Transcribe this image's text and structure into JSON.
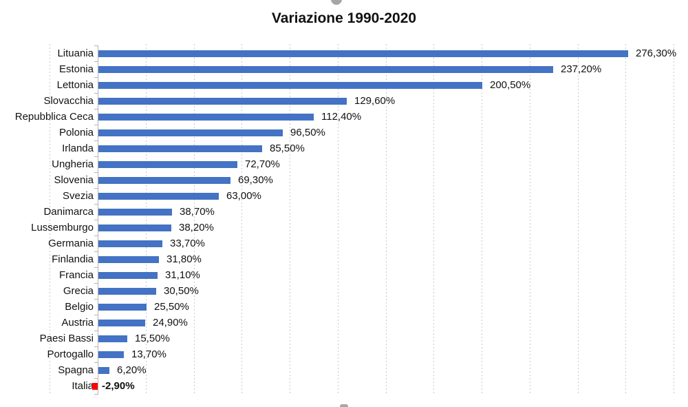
{
  "chart_data": {
    "type": "bar",
    "orientation": "horizontal",
    "title": "Variazione 1990-2020",
    "categories": [
      "Lituania",
      "Estonia",
      "Lettonia",
      "Slovacchia",
      "Repubblica Ceca",
      "Polonia",
      "Irlanda",
      "Ungheria",
      "Slovenia",
      "Svezia",
      "Danimarca",
      "Lussemburgo",
      "Germania",
      "Finlandia",
      "Francia",
      "Grecia",
      "Belgio",
      "Austria",
      "Paesi Bassi",
      "Portogallo",
      "Spagna",
      "Italia"
    ],
    "values": [
      276.3,
      237.2,
      200.5,
      129.6,
      112.4,
      96.5,
      85.5,
      72.7,
      69.3,
      63.0,
      38.7,
      38.2,
      33.7,
      31.8,
      31.1,
      30.5,
      25.5,
      24.9,
      15.5,
      13.7,
      6.2,
      -2.9
    ],
    "labels": [
      "276,30%",
      "237,20%",
      "200,50%",
      "129,60%",
      "112,40%",
      "96,50%",
      "85,50%",
      "72,70%",
      "69,30%",
      "63,00%",
      "38,70%",
      "38,20%",
      "33,70%",
      "31,80%",
      "31,10%",
      "30,50%",
      "25,50%",
      "24,90%",
      "15,50%",
      "13,70%",
      "6,20%",
      "-2,90%"
    ],
    "xlabel": "",
    "ylabel": "",
    "xlim": [
      -25,
      300
    ],
    "gridline_step": 25,
    "grid": "vertical-dotted",
    "legend": "none",
    "value_label_position": "outside-end",
    "colors": {
      "bar": "#4472C4",
      "negative_bar": "#FF0000",
      "gridline": "#C9C9C9",
      "axis": "#B3B3B3",
      "text": "#111111"
    }
  }
}
